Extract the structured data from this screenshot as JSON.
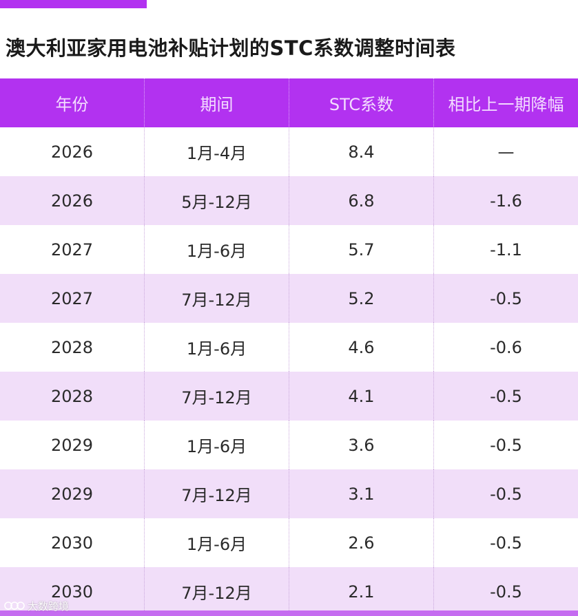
{
  "title": "澳大利亚家用电池补贴计划的STC系数调整时间表",
  "table": {
    "headers": [
      "年份",
      "期间",
      "STC系数",
      "相比上一期降幅"
    ],
    "rows": [
      [
        "2026",
        "1月-4月",
        "8.4",
        "—"
      ],
      [
        "2026",
        "5月-12月",
        "6.8",
        "-1.6"
      ],
      [
        "2027",
        "1月-6月",
        "5.7",
        "-1.1"
      ],
      [
        "2027",
        "7月-12月",
        "5.2",
        "-0.5"
      ],
      [
        "2028",
        "1月-6月",
        "4.6",
        "-0.6"
      ],
      [
        "2028",
        "7月-12月",
        "4.1",
        "-0.5"
      ],
      [
        "2029",
        "1月-6月",
        "3.6",
        "-0.5"
      ],
      [
        "2029",
        "7月-12月",
        "3.1",
        "-0.5"
      ],
      [
        "2030",
        "1月-6月",
        "2.6",
        "-0.5"
      ],
      [
        "2030",
        "7月-12月",
        "2.1",
        "-0.5"
      ]
    ]
  },
  "watermark": {
    "text": "大数跨境",
    "icon": "brand-logo-icon"
  },
  "colors": {
    "accent": "#b232f0",
    "header_bg": "#b232f0",
    "header_text": "#f3dcff",
    "stripe_bg": "#f1def9",
    "row_bg": "#ffffff"
  }
}
